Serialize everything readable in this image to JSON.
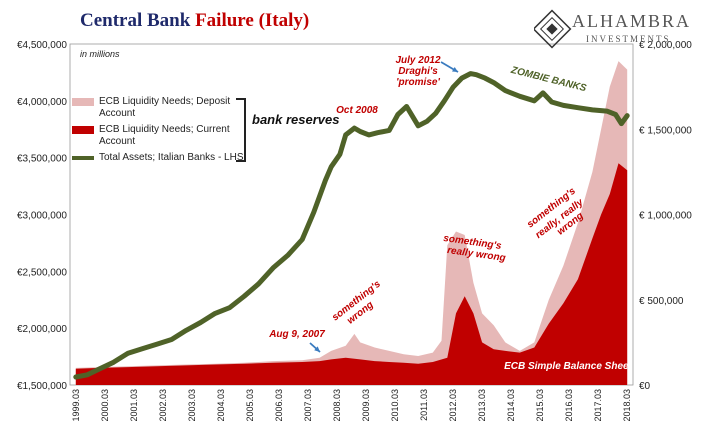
{
  "header": {
    "title_part1": "Central Bank ",
    "title_part2": "Failure (Italy)",
    "units_note": "in millions",
    "logo_name": "ALHAMBRA",
    "logo_sub": "INVESTMENTS"
  },
  "colors": {
    "title_blue": "#1f2a6b",
    "title_red": "#c00000",
    "deposit": "#e6b8b7",
    "current": "#c00000",
    "assets": "#4f6228",
    "annotation_red": "#c00000",
    "annotation_green": "#4f6228",
    "arrow": "#3a7bbf"
  },
  "chart_data": {
    "type": "line",
    "y_left": {
      "ticks": [
        1500000,
        2000000,
        2500000,
        3000000,
        3500000,
        4000000,
        4500000
      ],
      "tick_labels": [
        "€1,500,000",
        "€2,000,000",
        "€2,500,000",
        "€3,000,000",
        "€3,500,000",
        "€4,000,000",
        "€4,500,000"
      ],
      "range": [
        1500000,
        4500000
      ]
    },
    "y_right": {
      "ticks": [
        0,
        500000,
        1000000,
        1500000,
        2000000
      ],
      "tick_labels": [
        "€0",
        "€ 500,000",
        "€ 1,000,000",
        "€ 1,500,000",
        "€ 2,000,000"
      ],
      "range": [
        0,
        2000000
      ]
    },
    "x_ticks": [
      "1999.03",
      "2000.03",
      "2001.03",
      "2002.03",
      "2003.03",
      "2004.03",
      "2005.03",
      "2006.03",
      "2007.03",
      "2008.03",
      "2009.03",
      "2010.03",
      "2011.03",
      "2012.03",
      "2013.03",
      "2014.03",
      "2015.03",
      "2016.03",
      "2017.03",
      "2018.03"
    ],
    "legend": [
      {
        "name": "ECB Liquidity Needs; Deposit Account",
        "color": "#e6b8b7",
        "kind": "area"
      },
      {
        "name": "ECB Liquidity Needs; Current Account",
        "color": "#c00000",
        "kind": "area"
      },
      {
        "name": "Total Assets; Italian Banks - LHS",
        "color": "#4f6228",
        "kind": "line"
      }
    ],
    "bracket_label": "bank reserves",
    "series": [
      {
        "name": "Total Assets; Italian Banks - LHS",
        "axis": "left",
        "x": [
          1999.2,
          1999.6,
          2000.0,
          2000.5,
          2001.0,
          2001.5,
          2002.0,
          2002.5,
          2003.0,
          2003.5,
          2004.0,
          2004.5,
          2005.0,
          2005.5,
          2006.0,
          2006.5,
          2007.0,
          2007.4,
          2007.8,
          2008.0,
          2008.3,
          2008.5,
          2008.8,
          2009.0,
          2009.3,
          2009.6,
          2010.0,
          2010.3,
          2010.6,
          2011.0,
          2011.3,
          2011.6,
          2011.9,
          2012.2,
          2012.5,
          2012.8,
          2013.0,
          2013.3,
          2013.6,
          2014.0,
          2014.5,
          2015.0,
          2015.3,
          2015.6,
          2016.0,
          2016.5,
          2017.0,
          2017.5,
          2017.8,
          2018.0,
          2018.2
        ],
        "values": [
          1570000,
          1590000,
          1640000,
          1700000,
          1780000,
          1820000,
          1860000,
          1900000,
          1980000,
          2050000,
          2130000,
          2180000,
          2280000,
          2390000,
          2530000,
          2640000,
          2780000,
          3020000,
          3300000,
          3420000,
          3530000,
          3700000,
          3760000,
          3730000,
          3700000,
          3720000,
          3740000,
          3880000,
          3950000,
          3780000,
          3820000,
          3890000,
          4000000,
          4120000,
          4200000,
          4240000,
          4230000,
          4200000,
          4160000,
          4090000,
          4040000,
          4000000,
          4070000,
          3990000,
          3960000,
          3940000,
          3920000,
          3910000,
          3880000,
          3800000,
          3870000
        ]
      },
      {
        "name": "ECB Liquidity Needs; Deposit Account",
        "axis": "right",
        "x": [
          1999.2,
          2000.0,
          2001.0,
          2002.0,
          2003.0,
          2004.0,
          2005.0,
          2006.0,
          2007.0,
          2007.6,
          2008.0,
          2008.5,
          2008.8,
          2009.0,
          2009.5,
          2010.0,
          2010.5,
          2011.0,
          2011.5,
          2011.8,
          2012.0,
          2012.3,
          2012.6,
          2012.9,
          2013.2,
          2013.6,
          2014.0,
          2014.5,
          2015.0,
          2015.5,
          2016.0,
          2016.5,
          2017.0,
          2017.3,
          2017.6,
          2017.9,
          2018.2
        ],
        "values": [
          100000,
          105000,
          110000,
          115000,
          120000,
          125000,
          130000,
          140000,
          145000,
          160000,
          200000,
          230000,
          300000,
          250000,
          220000,
          200000,
          180000,
          170000,
          190000,
          260000,
          820000,
          900000,
          880000,
          600000,
          420000,
          350000,
          250000,
          200000,
          250000,
          500000,
          700000,
          950000,
          1250000,
          1500000,
          1750000,
          1900000,
          1850000
        ]
      },
      {
        "name": "ECB Liquidity Needs; Current Account",
        "axis": "right",
        "x": [
          1999.2,
          2000.0,
          2001.0,
          2002.0,
          2003.0,
          2004.0,
          2005.0,
          2006.0,
          2007.0,
          2007.6,
          2008.0,
          2008.5,
          2009.0,
          2009.5,
          2010.0,
          2010.5,
          2011.0,
          2011.5,
          2012.0,
          2012.3,
          2012.6,
          2012.9,
          2013.2,
          2013.6,
          2014.0,
          2014.5,
          2015.0,
          2015.5,
          2016.0,
          2016.5,
          2017.0,
          2017.3,
          2017.6,
          2017.9,
          2018.2
        ],
        "values": [
          95000,
          100000,
          105000,
          110000,
          115000,
          120000,
          125000,
          130000,
          135000,
          140000,
          150000,
          160000,
          150000,
          140000,
          135000,
          130000,
          125000,
          135000,
          160000,
          420000,
          520000,
          420000,
          250000,
          210000,
          200000,
          190000,
          220000,
          360000,
          480000,
          620000,
          860000,
          1000000,
          1120000,
          1300000,
          1260000
        ]
      }
    ],
    "annotations": [
      {
        "text": "Oct 2008",
        "color": "red"
      },
      {
        "text": "July 2012",
        "color": "red"
      },
      {
        "text": "Draghi's",
        "color": "red"
      },
      {
        "text": "'promise'",
        "color": "red"
      },
      {
        "text": "ZOMBIE BANKS",
        "color": "green"
      },
      {
        "text": "Aug 9, 2007",
        "color": "red"
      },
      {
        "text": "something's",
        "color": "red"
      },
      {
        "text": "wrong",
        "color": "red"
      },
      {
        "text": "something's",
        "color": "red"
      },
      {
        "text": "really wrong",
        "color": "red"
      },
      {
        "text": "something's",
        "color": "red"
      },
      {
        "text": "really, really",
        "color": "red"
      },
      {
        "text": "wrong",
        "color": "red"
      },
      {
        "text": "ECB Simple Balance Sheet",
        "color": "white"
      }
    ]
  }
}
